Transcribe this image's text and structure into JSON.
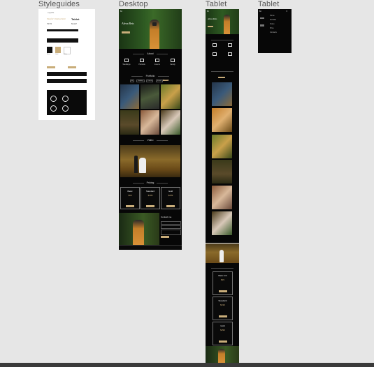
{
  "frames": {
    "styleguides": "Styleguides",
    "desktop": "Desktop",
    "tablet_1": "Tablet",
    "tablet_2": "Tablet"
  },
  "colors": {
    "canvas": "#e6e6e6",
    "board": "#070707",
    "accent_gold": "#c9ad7a",
    "white": "#ffffff"
  },
  "styleguide": {
    "heading_small": "Logo/H1",
    "font_name": "Playfair Display/Italic",
    "font_label": "Tablet",
    "label_h2": "H2/H2",
    "label_body": "Body/P",
    "swatch_caption_1": "Black",
    "swatch_caption_2": "Gold",
    "swatch_caption_3": "White"
  },
  "desktop": {
    "logo": "M",
    "hero_title": "Alexa Reis",
    "hero_button": "",
    "section_about": "About",
    "section_portfolio": "Portfolio",
    "section_video": "Video",
    "section_pricing": "Pricing",
    "section_contact": "Contact me",
    "services": [
      "Weddings",
      "Portraits",
      "Events",
      "Family"
    ],
    "filters": [
      "All",
      "Wedding",
      "Portrait",
      "Events",
      "Family"
    ],
    "pricing_cards": [
      {
        "title": "Basic",
        "price": "$99"
      },
      {
        "title": "Standard",
        "price": "$199"
      },
      {
        "title": "Gold",
        "price": "$299"
      }
    ]
  },
  "tablet": {
    "logo": "M",
    "hero_title": "Alexa Reis",
    "menu_items": [
      "Home",
      "Portfolio",
      "Video",
      "Price",
      "Contacts"
    ],
    "pricing_cards": [
      {
        "title": "Basic 1/3",
        "price": "$99"
      },
      {
        "title": "Standard",
        "price": "$199"
      },
      {
        "title": "Gold",
        "price": "$299"
      }
    ]
  }
}
